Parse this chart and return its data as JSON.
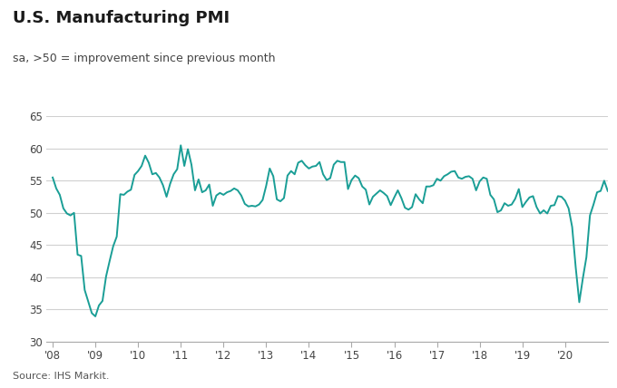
{
  "title": "U.S. Manufacturing PMI",
  "subtitle": "sa, >50 = improvement since previous month",
  "source": "Source: IHS Markit.",
  "line_color": "#1a9e96",
  "background_color": "#ffffff",
  "grid_color": "#d0d0d0",
  "ylim": [
    30,
    65
  ],
  "yticks": [
    30,
    35,
    40,
    45,
    50,
    55,
    60,
    65
  ],
  "xlabel_years": [
    "'08",
    "'09",
    "'10",
    "'11",
    "'12",
    "'13",
    "'14",
    "'15",
    "'16",
    "'17",
    "'18",
    "'19",
    "'20"
  ],
  "pmi_data": [
    55.5,
    53.8,
    52.8,
    50.7,
    49.9,
    49.6,
    50.0,
    43.5,
    43.3,
    38.0,
    36.2,
    34.4,
    33.9,
    35.6,
    36.3,
    40.1,
    42.5,
    44.8,
    46.3,
    52.9,
    52.8,
    53.3,
    53.6,
    55.9,
    56.5,
    57.3,
    58.9,
    57.8,
    56.0,
    56.2,
    55.5,
    54.3,
    52.5,
    54.5,
    56.0,
    56.8,
    60.5,
    57.3,
    59.9,
    57.5,
    53.5,
    55.2,
    53.2,
    53.5,
    54.4,
    51.1,
    52.7,
    53.1,
    52.8,
    53.2,
    53.4,
    53.8,
    53.5,
    52.7,
    51.4,
    51.0,
    51.1,
    51.0,
    51.3,
    52.0,
    54.2,
    56.9,
    55.7,
    52.1,
    51.8,
    52.3,
    55.8,
    56.5,
    56.0,
    57.8,
    58.1,
    57.4,
    56.9,
    57.2,
    57.3,
    57.9,
    56.0,
    55.1,
    55.4,
    57.5,
    58.1,
    57.9,
    57.9,
    53.7,
    55.1,
    55.8,
    55.4,
    54.1,
    53.6,
    51.3,
    52.5,
    53.0,
    53.5,
    53.1,
    52.6,
    51.2,
    52.4,
    53.5,
    52.3,
    50.8,
    50.5,
    50.9,
    52.9,
    52.1,
    51.5,
    54.1,
    54.1,
    54.3,
    55.3,
    55.0,
    55.7,
    56.0,
    56.4,
    56.5,
    55.5,
    55.3,
    55.6,
    55.7,
    55.3,
    53.5,
    54.9,
    55.5,
    55.3,
    52.8,
    52.1,
    50.1,
    50.4,
    51.5,
    51.1,
    51.3,
    52.2,
    53.7,
    50.9,
    51.7,
    52.4,
    52.6,
    50.9,
    49.9,
    50.4,
    49.9,
    51.1,
    51.2,
    52.6,
    52.5,
    51.9,
    50.7,
    47.8,
    41.5,
    36.1,
    39.8,
    43.1,
    49.6,
    51.3,
    53.2,
    53.4,
    55.0,
    53.4
  ]
}
